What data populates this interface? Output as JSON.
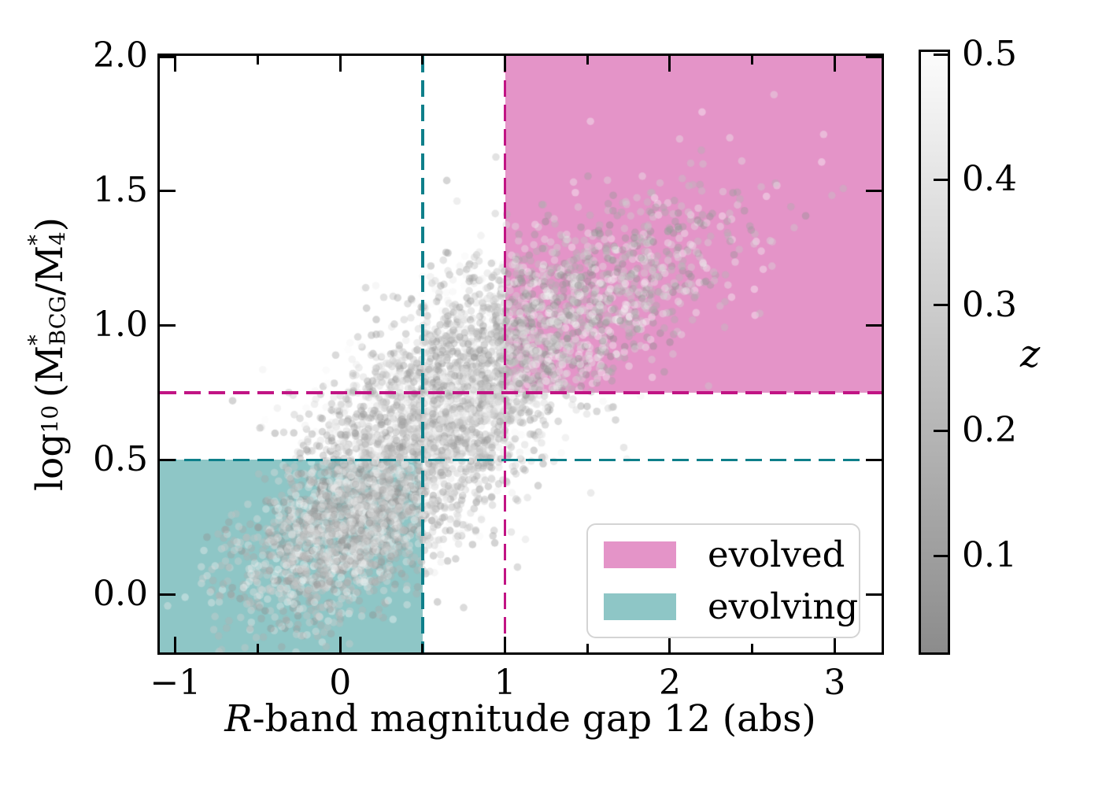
{
  "chart_data": {
    "type": "scatter",
    "title": "",
    "xlabel": "R-band magnitude gap 12 (abs)",
    "xlabel_segments": [
      {
        "k": "italic",
        "t": "R"
      },
      {
        "k": "text",
        "t": "-band magnitude gap 12 (abs)"
      }
    ],
    "ylabel": "log10 (M*_BCG / M*_4)",
    "ylabel_segments": [
      {
        "k": "text",
        "t": "log"
      },
      {
        "k": "sub",
        "t": "10"
      },
      {
        "k": "text",
        "t": " (M"
      },
      {
        "k": "stack",
        "sup": "*",
        "sub": "BCG"
      },
      {
        "k": "text",
        "t": "/M"
      },
      {
        "k": "stack",
        "sup": "*",
        "sub": "4"
      },
      {
        "k": "text",
        "t": ")"
      }
    ],
    "xlim": [
      -1.095,
      3.285
    ],
    "ylim": [
      -0.215,
      2.0
    ],
    "xticks": [
      -1,
      0,
      1,
      2,
      3
    ],
    "xtick_labels": [
      "−1",
      "0",
      "1",
      "2",
      "3"
    ],
    "xticks_minor": [
      -0.5,
      0.5,
      1.5,
      2.5
    ],
    "yticks": [
      0.0,
      0.5,
      1.0,
      1.5,
      2.0
    ],
    "ytick_labels": [
      "0.0",
      "0.5",
      "1.0",
      "1.5",
      "2.0"
    ],
    "grid": false,
    "background": "#ffffff",
    "thresholds": {
      "evolved": {
        "x": 1.0,
        "y": 0.75,
        "line_color": "#c11484",
        "fill_color": "#e494c8",
        "line_style": "dashed"
      },
      "evolving": {
        "x": 0.5,
        "y": 0.5,
        "line_color": "#0e7f8a",
        "fill_color": "#8ec6c6",
        "line_style": "dashed"
      }
    },
    "regions": [
      {
        "name": "evolved",
        "x_min": 1.0,
        "x_max": 3.285,
        "y_min": 0.75,
        "y_max": 2.0,
        "color": "#e494c8"
      },
      {
        "name": "evolving",
        "x_min": -1.095,
        "x_max": 0.5,
        "y_min": -0.215,
        "y_max": 0.5,
        "color": "#8ec6c6"
      }
    ],
    "legend": {
      "position": "lower right",
      "entries": [
        {
          "label": "evolved",
          "color": "#e494c8"
        },
        {
          "label": "evolving",
          "color": "#8ec6c6"
        }
      ]
    },
    "colorbar": {
      "label": "z",
      "ticks": [
        0.1,
        0.2,
        0.3,
        0.4,
        0.5
      ],
      "tick_labels": [
        "0.1",
        "0.2",
        "0.3",
        "0.4",
        "0.5"
      ],
      "zlim": [
        0.023,
        0.502
      ],
      "color_low": "#8c8c8c",
      "color_high": "#fcfcfc",
      "orientation": "vertical"
    },
    "scatter": {
      "n_points": 5200,
      "marker": "circle",
      "radius_px": 4.8,
      "alpha": 0.4,
      "seed": 42,
      "z_value_range": [
        0.023,
        0.502
      ],
      "gray_level_range": [
        140,
        251
      ],
      "components": [
        {
          "n": 2500,
          "mean": [
            0.62,
            0.68
          ],
          "sigma": [
            0.42,
            0.26
          ],
          "rho": 0.55
        },
        {
          "n": 1600,
          "mean": [
            0.05,
            0.25
          ],
          "sigma": [
            0.34,
            0.18
          ],
          "rho": 0.45
        },
        {
          "n": 1100,
          "mean": [
            1.45,
            1.05
          ],
          "sigma": [
            0.48,
            0.22
          ],
          "rho": 0.65
        }
      ]
    }
  }
}
